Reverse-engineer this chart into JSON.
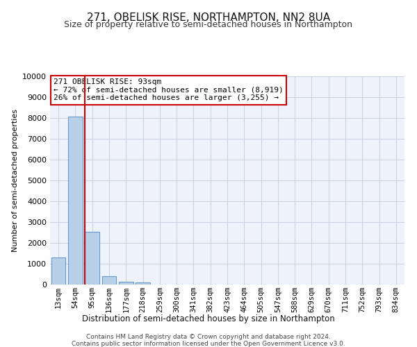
{
  "title": "271, OBELISK RISE, NORTHAMPTON, NN2 8UA",
  "subtitle": "Size of property relative to semi-detached houses in Northampton",
  "xlabel": "Distribution of semi-detached houses by size in Northampton",
  "ylabel": "Number of semi-detached properties",
  "categories": [
    "13sqm",
    "54sqm",
    "95sqm",
    "136sqm",
    "177sqm",
    "218sqm",
    "259sqm",
    "300sqm",
    "341sqm",
    "382sqm",
    "423sqm",
    "464sqm",
    "505sqm",
    "547sqm",
    "588sqm",
    "629sqm",
    "670sqm",
    "711sqm",
    "752sqm",
    "793sqm",
    "834sqm"
  ],
  "values": [
    1300,
    8050,
    2530,
    390,
    150,
    110,
    0,
    0,
    0,
    0,
    0,
    0,
    0,
    0,
    0,
    0,
    0,
    0,
    0,
    0,
    0
  ],
  "bar_color": "#b8cfe8",
  "bar_edge_color": "#6699cc",
  "red_line_color": "#cc0000",
  "annotation_line1": "271 OBELISK RISE: 93sqm",
  "annotation_line2": "← 72% of semi-detached houses are smaller (8,919)",
  "annotation_line3": "26% of semi-detached houses are larger (3,255) →",
  "annotation_box_color": "#ffffff",
  "annotation_box_edge": "#cc0000",
  "ylim": [
    0,
    10000
  ],
  "yticks": [
    0,
    1000,
    2000,
    3000,
    4000,
    5000,
    6000,
    7000,
    8000,
    9000,
    10000
  ],
  "footer1": "Contains HM Land Registry data © Crown copyright and database right 2024.",
  "footer2": "Contains public sector information licensed under the Open Government Licence v3.0.",
  "bg_color": "#eef2fb",
  "grid_color": "#c8d0e0",
  "title_fontsize": 11,
  "subtitle_fontsize": 9,
  "ylabel_fontsize": 8,
  "xlabel_fontsize": 8.5,
  "tick_fontsize": 8,
  "xtick_fontsize": 7.5,
  "footer_fontsize": 6.5,
  "annot_fontsize": 8
}
